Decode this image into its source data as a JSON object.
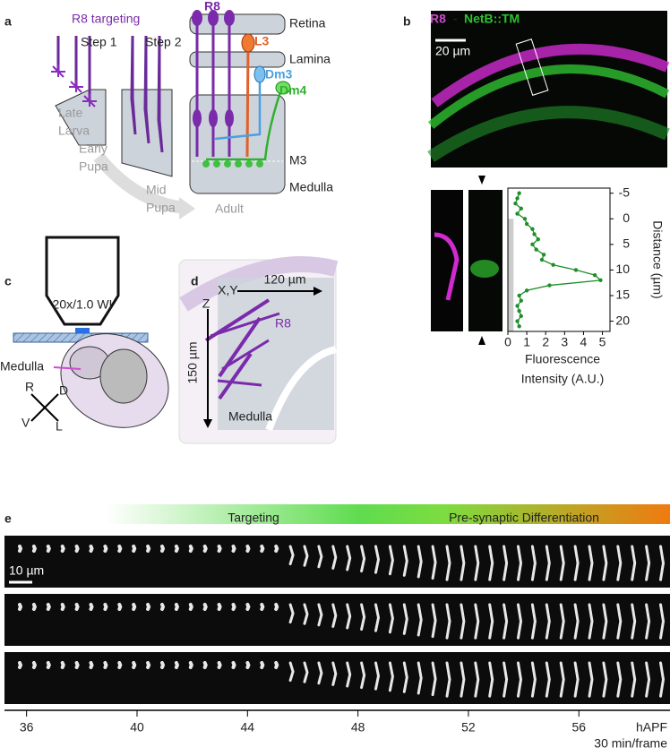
{
  "panel_a": {
    "label": "a",
    "heading": "R8 targeting",
    "step1": "Step 1",
    "step2": "Step 2",
    "stage_late_larva": [
      "Late",
      "Larva"
    ],
    "stage_early_pupa": [
      "Early",
      "Pupa"
    ],
    "stage_mid_pupa": [
      "Mid",
      "Pupa"
    ],
    "stage_adult": "Adult",
    "r8": "R8",
    "retina": "Retina",
    "l3": "L3",
    "lamina": "Lamina",
    "dm3": "Dm3",
    "dm4": "Dm4",
    "m3": "M3",
    "medulla": "Medulla"
  },
  "panel_b": {
    "label": "b",
    "r8": "R8",
    "separator": "-",
    "netb": "NetB::TM",
    "scale_bar": "20 µm"
  },
  "chart_data": {
    "type": "line",
    "x_label": "Distance (µm)",
    "y_label": [
      "Fluorescence",
      "Intensity (A.U.)"
    ],
    "x": [
      -5,
      -4,
      -3,
      -2,
      -1,
      0,
      1,
      2,
      3,
      4,
      5,
      6,
      7,
      8,
      9,
      10,
      11,
      12,
      13,
      14,
      15,
      16,
      17,
      18,
      19,
      20,
      21
    ],
    "series": [
      {
        "color": "#1f8f2a",
        "values": [
          0.6,
          0.5,
          0.4,
          0.7,
          0.5,
          0.9,
          1.0,
          1.3,
          1.4,
          1.6,
          1.3,
          1.5,
          1.9,
          1.8,
          2.4,
          3.6,
          4.6,
          4.9,
          2.2,
          1.0,
          0.6,
          0.7,
          0.5,
          0.6,
          0.7,
          0.5,
          0.6
        ]
      }
    ],
    "xlim": [
      -6,
      22
    ],
    "xticks": [
      -5,
      0,
      5,
      10,
      15,
      20
    ],
    "ylim": [
      0,
      5.4
    ],
    "yticks": [
      0,
      1,
      2,
      3,
      4,
      5
    ]
  },
  "panel_c": {
    "label": "c",
    "objective": "20x/1.0 WI",
    "medulla": "Medulla",
    "dir_r": "R",
    "dir_d": "D",
    "dir_v": "V",
    "dir_l": "L"
  },
  "panel_d": {
    "label": "d",
    "xy": "X,Y",
    "xy_size": "120 µm",
    "z": "Z",
    "z_size": "150 µm",
    "r8": "R8",
    "medulla": "Medulla"
  },
  "panel_e": {
    "label": "e",
    "phase1": "Targeting",
    "phase2": "Pre-synaptic Differentiation",
    "scale_bar": "10 µm",
    "unit": "hAPF",
    "frame_rate": "30 min/frame",
    "xlim": [
      35.2,
      59.3
    ],
    "xticks": [
      36,
      40,
      44,
      48,
      52,
      56
    ]
  }
}
